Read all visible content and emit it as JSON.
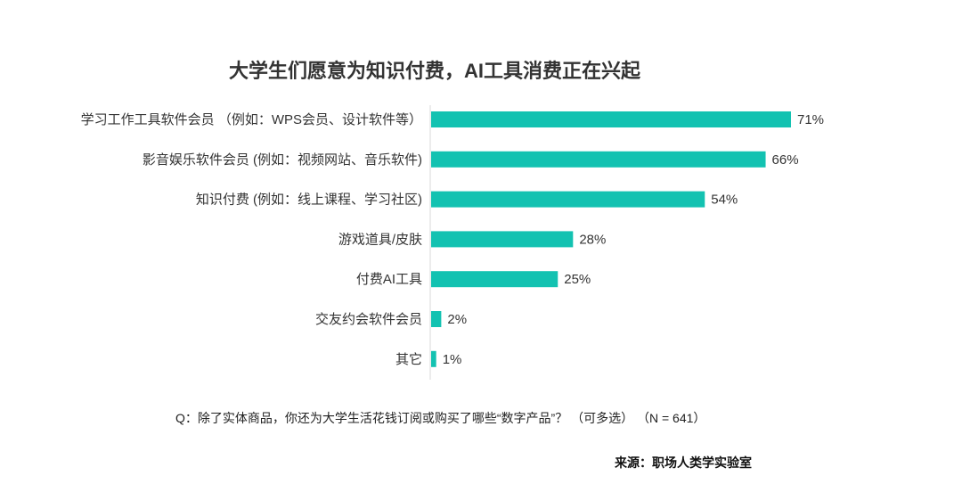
{
  "chart_data": {
    "type": "bar",
    "orientation": "horizontal",
    "title": "大学生们愿意为知识付费，AI工具消费正在兴起",
    "categories": [
      "学习工作工具软件会员 （例如：WPS会员、设计软件等）",
      "影音娱乐软件会员 (例如：视频网站、音乐软件)",
      "知识付费 (例如：线上课程、学习社区)",
      "游戏道具/皮肤",
      "付费AI工具",
      "交友约会软件会员",
      "其它"
    ],
    "values": [
      71,
      66,
      54,
      28,
      25,
      2,
      1
    ],
    "data_labels": [
      "71%",
      "66%",
      "54%",
      "28%",
      "25%",
      "2%",
      "1%"
    ],
    "unit": "%",
    "xlim": [
      0,
      100
    ],
    "grid": false,
    "legend": "none",
    "bar_color": "#13c2b1"
  },
  "note": "Q：除了实体商品，你还为大学生活花钱订阅或购买了哪些“数字产品”？ （可多选） （N = 641）",
  "source": "来源：职场人类学实验室"
}
